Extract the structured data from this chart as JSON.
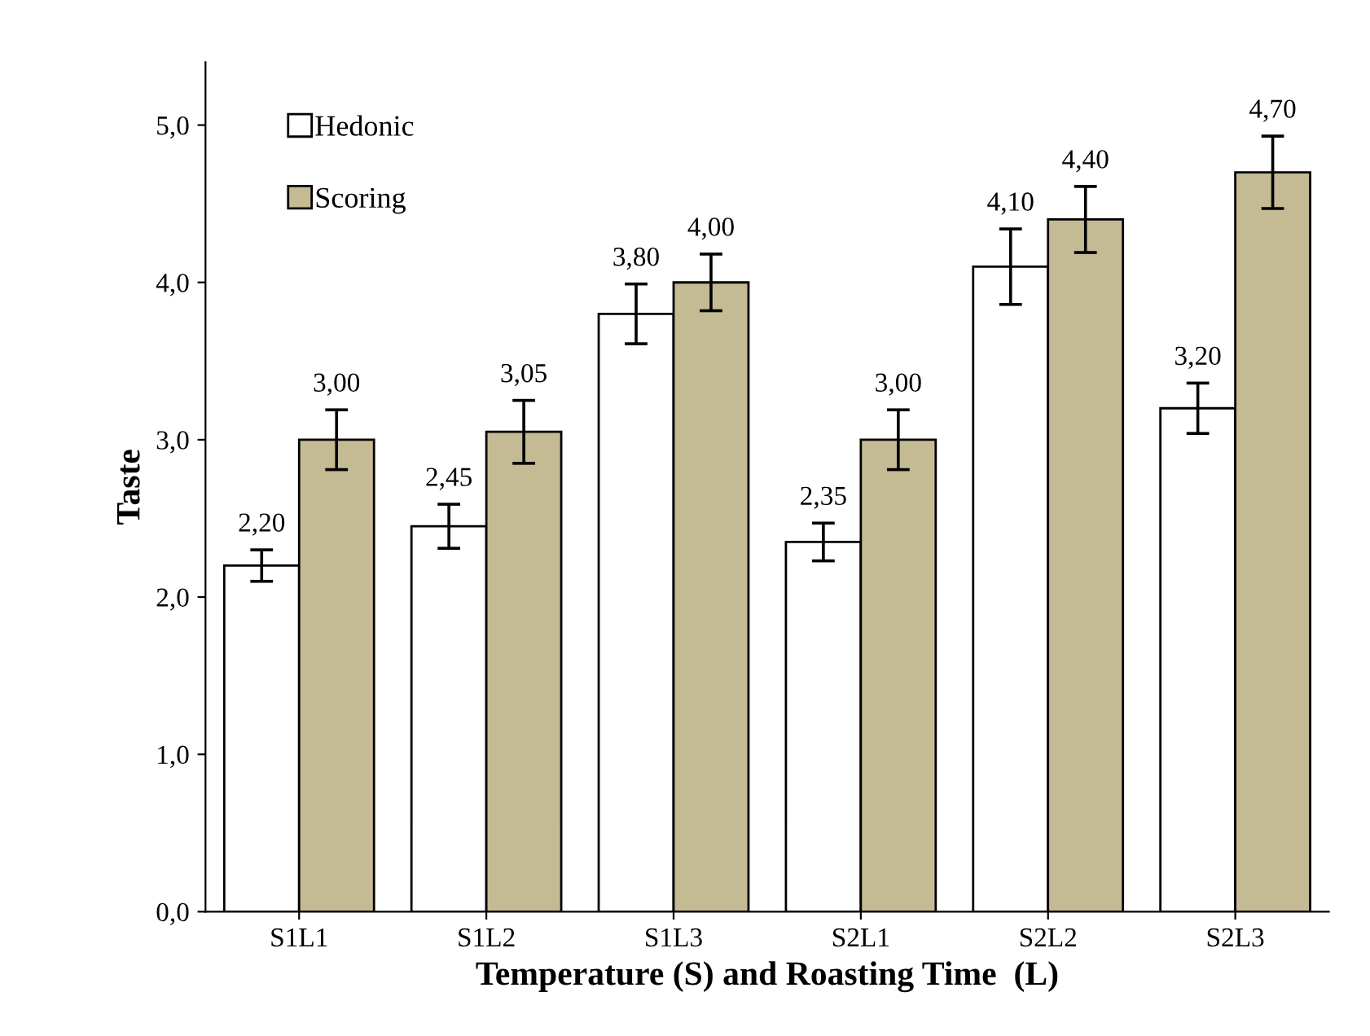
{
  "chart_data": {
    "type": "bar",
    "xlabel": "Temperature (S) and Roasting Time  (L)",
    "ylabel": "Taste",
    "categories": [
      "S1L1",
      "S1L2",
      "S1L3",
      "S2L1",
      "S2L2",
      "S2L3"
    ],
    "series": [
      {
        "name": "Hedonic",
        "color": "#ffffff",
        "values": [
          2.2,
          2.45,
          3.8,
          2.35,
          4.1,
          3.2
        ],
        "errors": [
          0.1,
          0.14,
          0.19,
          0.12,
          0.24,
          0.16
        ],
        "value_labels": [
          "2,20",
          "2,45",
          "3,80",
          "2,35",
          "4,10",
          "3,20"
        ]
      },
      {
        "name": "Scoring",
        "color": "#c4bb94",
        "values": [
          3.0,
          3.05,
          4.0,
          3.0,
          4.4,
          4.7
        ],
        "errors": [
          0.19,
          0.2,
          0.18,
          0.19,
          0.21,
          0.23
        ],
        "value_labels": [
          "3,00",
          "3,05",
          "4,00",
          "3,00",
          "4,40",
          "4,70"
        ]
      }
    ],
    "ylim": [
      0,
      5.4
    ],
    "yticks": [
      {
        "value": 0,
        "label": "0,0"
      },
      {
        "value": 1,
        "label": "1,0"
      },
      {
        "value": 2,
        "label": "2,0"
      },
      {
        "value": 3,
        "label": "3,0"
      },
      {
        "value": 4,
        "label": "4,0"
      },
      {
        "value": 5,
        "label": "5,0"
      }
    ],
    "grid": false,
    "legend": "top left"
  }
}
